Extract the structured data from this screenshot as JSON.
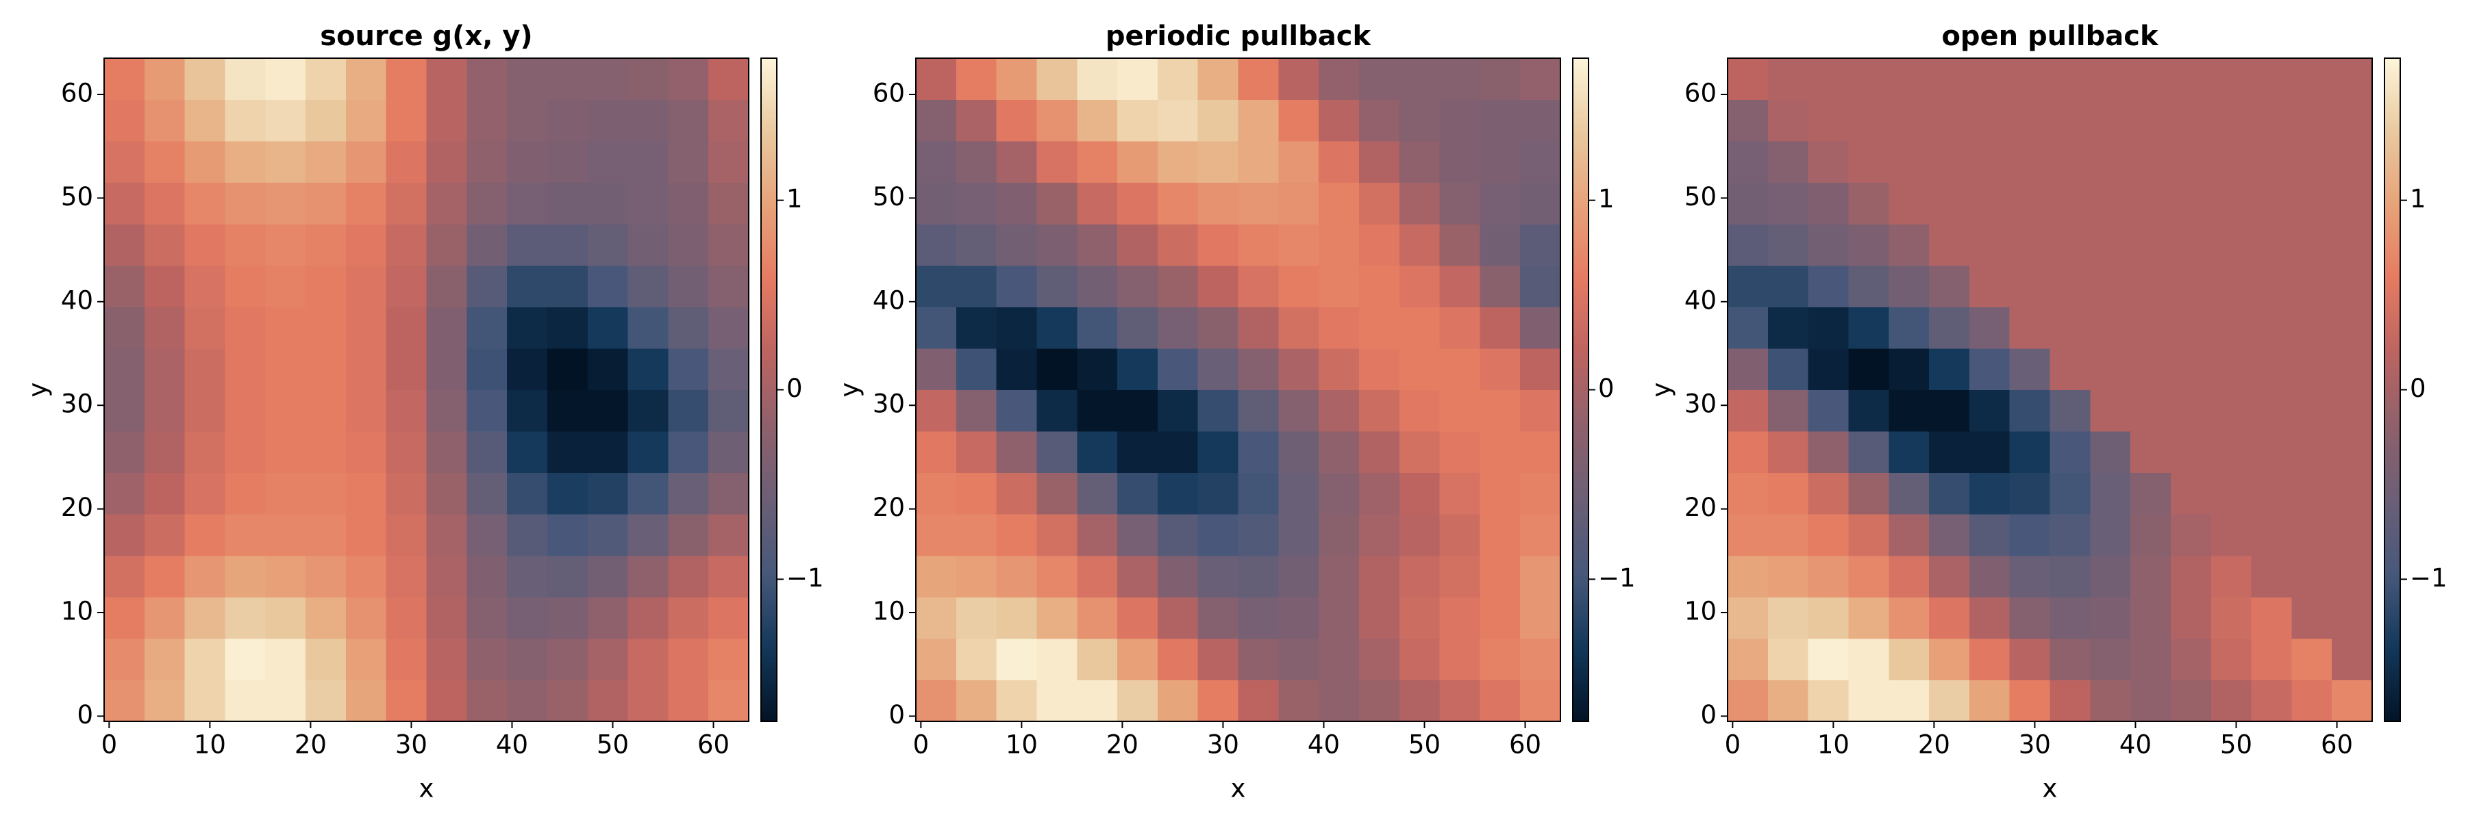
{
  "chart_data": [
    {
      "type": "heatmap",
      "title": "source g(x, y)",
      "xlabel": "x",
      "ylabel": "y",
      "xlim": [
        -0.5,
        63.5
      ],
      "ylim": [
        -0.5,
        63.5
      ],
      "xticks": [
        0,
        10,
        20,
        30,
        40,
        50,
        60
      ],
      "yticks": [
        0,
        10,
        20,
        30,
        40,
        50,
        60
      ],
      "grid": false,
      "xbins": [
        -0.5,
        3.5,
        7.5,
        11.5,
        15.5,
        19.5,
        23.5,
        27.5,
        31.5,
        35.5,
        39.5,
        43.5,
        47.5,
        51.5,
        55.5,
        59.5,
        63.5
      ],
      "ybins": [
        -0.5,
        3.5,
        7.5,
        11.5,
        15.5,
        19.5,
        23.5,
        27.5,
        31.5,
        35.5,
        39.5,
        43.5,
        47.5,
        51.5,
        55.5,
        59.5,
        63.5
      ],
      "clim": [
        -1.75,
        1.75
      ],
      "cticks": [
        {
          "value": -1,
          "label": "−1"
        },
        0,
        1
      ],
      "colorscale": [
        "#031326",
        "#13385a",
        "#47587a",
        "#6b5f76",
        "#8e616c",
        "#bc6461",
        "#e57b62",
        "#e7a279",
        "#e9c99f",
        "#fdf5da"
      ],
      "z": [
        [
          0.8,
          1.1,
          1.45,
          1.65,
          1.65,
          1.4,
          1.0,
          0.6,
          0.2,
          -0.1,
          -0.2,
          -0.1,
          0.1,
          0.3,
          0.5,
          0.7
        ],
        [
          0.75,
          1.05,
          1.45,
          1.7,
          1.65,
          1.35,
          0.95,
          0.55,
          0.15,
          -0.2,
          -0.3,
          -0.2,
          0.0,
          0.3,
          0.5,
          0.65
        ],
        [
          0.6,
          0.85,
          1.2,
          1.4,
          1.35,
          1.1,
          0.8,
          0.5,
          0.1,
          -0.3,
          -0.45,
          -0.4,
          -0.2,
          0.1,
          0.35,
          0.5
        ],
        [
          0.4,
          0.6,
          0.85,
          1.0,
          0.95,
          0.85,
          0.7,
          0.45,
          0.05,
          -0.35,
          -0.6,
          -0.65,
          -0.5,
          -0.2,
          0.1,
          0.3
        ],
        [
          0.15,
          0.35,
          0.6,
          0.7,
          0.7,
          0.7,
          0.6,
          0.4,
          0.0,
          -0.45,
          -0.8,
          -0.95,
          -0.85,
          -0.6,
          -0.25,
          0.0
        ],
        [
          -0.05,
          0.2,
          0.45,
          0.6,
          0.65,
          0.65,
          0.6,
          0.35,
          -0.1,
          -0.65,
          -1.1,
          -1.3,
          -1.25,
          -1.0,
          -0.6,
          -0.3
        ],
        [
          -0.2,
          0.1,
          0.4,
          0.55,
          0.6,
          0.6,
          0.55,
          0.3,
          -0.2,
          -0.8,
          -1.35,
          -1.6,
          -1.6,
          -1.35,
          -0.95,
          -0.55
        ],
        [
          -0.3,
          0.05,
          0.35,
          0.55,
          0.6,
          0.6,
          0.5,
          0.25,
          -0.3,
          -0.95,
          -1.5,
          -1.72,
          -1.72,
          -1.5,
          -1.1,
          -0.7
        ],
        [
          -0.3,
          0.05,
          0.35,
          0.55,
          0.6,
          0.6,
          0.5,
          0.2,
          -0.35,
          -1.05,
          -1.6,
          -1.75,
          -1.65,
          -1.35,
          -0.95,
          -0.6
        ],
        [
          -0.25,
          0.1,
          0.4,
          0.55,
          0.6,
          0.6,
          0.5,
          0.2,
          -0.35,
          -1.0,
          -1.5,
          -1.55,
          -1.35,
          -1.0,
          -0.7,
          -0.45
        ],
        [
          -0.1,
          0.2,
          0.45,
          0.6,
          0.65,
          0.6,
          0.5,
          0.25,
          -0.25,
          -0.8,
          -1.15,
          -1.15,
          -0.95,
          -0.7,
          -0.5,
          -0.3
        ],
        [
          0.1,
          0.35,
          0.55,
          0.65,
          0.7,
          0.65,
          0.55,
          0.3,
          -0.1,
          -0.5,
          -0.75,
          -0.75,
          -0.65,
          -0.5,
          -0.4,
          -0.2
        ],
        [
          0.3,
          0.5,
          0.7,
          0.8,
          0.85,
          0.8,
          0.65,
          0.4,
          0.0,
          -0.3,
          -0.45,
          -0.5,
          -0.5,
          -0.45,
          -0.35,
          -0.1
        ],
        [
          0.45,
          0.65,
          0.9,
          1.1,
          1.15,
          1.05,
          0.85,
          0.5,
          0.1,
          -0.2,
          -0.35,
          -0.4,
          -0.45,
          -0.45,
          -0.3,
          0.0
        ],
        [
          0.55,
          0.8,
          1.15,
          1.45,
          1.5,
          1.35,
          1.05,
          0.6,
          0.15,
          -0.15,
          -0.3,
          -0.35,
          -0.4,
          -0.4,
          -0.3,
          0.05
        ],
        [
          0.6,
          0.9,
          1.3,
          1.6,
          1.65,
          1.45,
          1.1,
          0.6,
          0.15,
          -0.15,
          -0.3,
          -0.3,
          -0.3,
          -0.25,
          -0.15,
          0.2
        ]
      ]
    },
    {
      "type": "heatmap",
      "title": "periodic pullback",
      "xlabel": "x",
      "ylabel": "y",
      "xlim": [
        -0.5,
        63.5
      ],
      "ylim": [
        -0.5,
        63.5
      ],
      "xticks": [
        0,
        10,
        20,
        30,
        40,
        50,
        60
      ],
      "yticks": [
        0,
        10,
        20,
        30,
        40,
        50,
        60
      ],
      "grid": false,
      "xbins": [
        -0.5,
        3.5,
        7.5,
        11.5,
        15.5,
        19.5,
        23.5,
        27.5,
        31.5,
        35.5,
        39.5,
        43.5,
        47.5,
        51.5,
        55.5,
        59.5,
        63.5
      ],
      "ybins": [
        -0.5,
        3.5,
        7.5,
        11.5,
        15.5,
        19.5,
        23.5,
        27.5,
        31.5,
        35.5,
        39.5,
        43.5,
        47.5,
        51.5,
        55.5,
        59.5,
        63.5
      ],
      "clim": [
        -1.75,
        1.75
      ],
      "cticks": [
        {
          "value": -1,
          "label": "−1"
        },
        0,
        1
      ],
      "colorscale": [
        "#031326",
        "#13385a",
        "#47587a",
        "#6b5f76",
        "#8e616c",
        "#bc6461",
        "#e57b62",
        "#e7a279",
        "#e9c99f",
        "#fdf5da"
      ],
      "z": [
        [
          0.8,
          1.1,
          1.45,
          1.65,
          1.65,
          1.4,
          1.0,
          0.6,
          0.2,
          -0.1,
          -0.2,
          -0.1,
          0.1,
          0.3,
          0.5,
          0.7
        ],
        [
          1.05,
          1.45,
          1.7,
          1.65,
          1.35,
          0.95,
          0.55,
          0.15,
          -0.2,
          -0.3,
          -0.2,
          0.0,
          0.3,
          0.5,
          0.65,
          0.75
        ],
        [
          1.2,
          1.4,
          1.35,
          1.1,
          0.8,
          0.5,
          0.1,
          -0.3,
          -0.45,
          -0.4,
          -0.2,
          0.1,
          0.35,
          0.5,
          0.6,
          0.85
        ],
        [
          1.0,
          0.95,
          0.85,
          0.7,
          0.45,
          0.05,
          -0.35,
          -0.6,
          -0.65,
          -0.5,
          -0.2,
          0.1,
          0.3,
          0.4,
          0.6,
          0.85
        ],
        [
          0.7,
          0.7,
          0.6,
          0.4,
          0.0,
          -0.45,
          -0.8,
          -0.95,
          -0.85,
          -0.6,
          -0.25,
          0.0,
          0.15,
          0.35,
          0.6,
          0.7
        ],
        [
          0.65,
          0.6,
          0.35,
          -0.1,
          -0.65,
          -1.1,
          -1.3,
          -1.25,
          -1.0,
          -0.6,
          -0.3,
          -0.05,
          0.2,
          0.45,
          0.6,
          0.65
        ],
        [
          0.55,
          0.3,
          -0.2,
          -0.8,
          -1.35,
          -1.6,
          -1.6,
          -1.35,
          -0.95,
          -0.55,
          -0.2,
          0.1,
          0.4,
          0.55,
          0.6,
          0.6
        ],
        [
          0.25,
          -0.3,
          -0.95,
          -1.5,
          -1.72,
          -1.72,
          -1.5,
          -1.1,
          -0.7,
          -0.3,
          0.05,
          0.35,
          0.55,
          0.6,
          0.6,
          0.5
        ],
        [
          -0.35,
          -1.05,
          -1.6,
          -1.75,
          -1.65,
          -1.35,
          -0.95,
          -0.6,
          -0.3,
          0.05,
          0.35,
          0.55,
          0.6,
          0.6,
          0.5,
          0.2
        ],
        [
          -1.0,
          -1.5,
          -1.55,
          -1.35,
          -1.0,
          -0.7,
          -0.45,
          -0.25,
          0.1,
          0.4,
          0.55,
          0.6,
          0.6,
          0.5,
          0.2,
          -0.35
        ],
        [
          -1.15,
          -1.15,
          -0.95,
          -0.7,
          -0.5,
          -0.3,
          -0.1,
          0.2,
          0.45,
          0.6,
          0.65,
          0.6,
          0.5,
          0.25,
          -0.25,
          -0.8
        ],
        [
          -0.75,
          -0.65,
          -0.5,
          -0.4,
          -0.2,
          0.1,
          0.35,
          0.55,
          0.65,
          0.7,
          0.65,
          0.55,
          0.3,
          -0.1,
          -0.5,
          -0.75
        ],
        [
          -0.5,
          -0.45,
          -0.35,
          -0.1,
          0.3,
          0.5,
          0.7,
          0.8,
          0.85,
          0.8,
          0.65,
          0.4,
          0.0,
          -0.3,
          -0.45,
          -0.5
        ],
        [
          -0.45,
          -0.3,
          0.0,
          0.45,
          0.65,
          0.9,
          1.1,
          1.15,
          1.05,
          0.85,
          0.5,
          0.1,
          -0.2,
          -0.35,
          -0.4,
          -0.45
        ],
        [
          -0.3,
          0.05,
          0.55,
          0.8,
          1.15,
          1.45,
          1.5,
          1.35,
          1.05,
          0.6,
          0.15,
          -0.15,
          -0.3,
          -0.35,
          -0.4,
          -0.4
        ],
        [
          0.2,
          0.6,
          0.9,
          1.3,
          1.6,
          1.65,
          1.45,
          1.1,
          0.6,
          0.15,
          -0.15,
          -0.3,
          -0.3,
          -0.3,
          -0.25,
          -0.15
        ]
      ]
    },
    {
      "type": "heatmap",
      "title": "open pullback",
      "xlabel": "x",
      "ylabel": "y",
      "xlim": [
        -0.5,
        63.5
      ],
      "ylim": [
        -0.5,
        63.5
      ],
      "xticks": [
        0,
        10,
        20,
        30,
        40,
        50,
        60
      ],
      "yticks": [
        0,
        10,
        20,
        30,
        40,
        50,
        60
      ],
      "grid": false,
      "xbins": [
        -0.5,
        3.5,
        7.5,
        11.5,
        15.5,
        19.5,
        23.5,
        27.5,
        31.5,
        35.5,
        39.5,
        43.5,
        47.5,
        51.5,
        55.5,
        59.5,
        63.5
      ],
      "ybins": [
        -0.5,
        3.5,
        7.5,
        11.5,
        15.5,
        19.5,
        23.5,
        27.5,
        31.5,
        35.5,
        39.5,
        43.5,
        47.5,
        51.5,
        55.5,
        59.5,
        63.5
      ],
      "clim": [
        -1.75,
        1.75
      ],
      "cticks": [
        {
          "value": -1,
          "label": "−1"
        },
        0,
        1
      ],
      "colorscale": [
        "#031326",
        "#13385a",
        "#47587a",
        "#6b5f76",
        "#8e616c",
        "#bc6461",
        "#e57b62",
        "#e7a279",
        "#e9c99f",
        "#fdf5da"
      ],
      "z": [
        [
          0.8,
          1.1,
          1.45,
          1.65,
          1.65,
          1.4,
          1.0,
          0.6,
          0.2,
          -0.1,
          -0.2,
          -0.1,
          0.1,
          0.3,
          0.5,
          0.7
        ],
        [
          1.05,
          1.45,
          1.7,
          1.65,
          1.35,
          0.95,
          0.55,
          0.15,
          -0.2,
          -0.3,
          -0.2,
          0.0,
          0.3,
          0.5,
          0.65,
          0.1
        ],
        [
          1.2,
          1.4,
          1.35,
          1.1,
          0.8,
          0.5,
          0.1,
          -0.3,
          -0.45,
          -0.4,
          -0.2,
          0.1,
          0.35,
          0.5,
          0.1,
          0.1
        ],
        [
          1.0,
          0.95,
          0.85,
          0.7,
          0.45,
          0.05,
          -0.35,
          -0.6,
          -0.65,
          -0.5,
          -0.2,
          0.1,
          0.3,
          0.1,
          0.1,
          0.1
        ],
        [
          0.7,
          0.7,
          0.6,
          0.4,
          0.0,
          -0.45,
          -0.8,
          -0.95,
          -0.85,
          -0.6,
          -0.25,
          0.0,
          0.1,
          0.1,
          0.1,
          0.1
        ],
        [
          0.65,
          0.6,
          0.35,
          -0.1,
          -0.65,
          -1.1,
          -1.3,
          -1.25,
          -1.0,
          -0.6,
          -0.3,
          0.1,
          0.1,
          0.1,
          0.1,
          0.1
        ],
        [
          0.55,
          0.3,
          -0.2,
          -0.8,
          -1.35,
          -1.6,
          -1.6,
          -1.35,
          -0.95,
          -0.55,
          0.1,
          0.1,
          0.1,
          0.1,
          0.1,
          0.1
        ],
        [
          0.25,
          -0.3,
          -0.95,
          -1.5,
          -1.72,
          -1.72,
          -1.5,
          -1.1,
          -0.7,
          0.1,
          0.1,
          0.1,
          0.1,
          0.1,
          0.1,
          0.1
        ],
        [
          -0.35,
          -1.05,
          -1.6,
          -1.75,
          -1.65,
          -1.35,
          -0.95,
          -0.6,
          0.1,
          0.1,
          0.1,
          0.1,
          0.1,
          0.1,
          0.1,
          0.1
        ],
        [
          -1.0,
          -1.5,
          -1.55,
          -1.35,
          -1.0,
          -0.7,
          -0.45,
          0.1,
          0.1,
          0.1,
          0.1,
          0.1,
          0.1,
          0.1,
          0.1,
          0.1
        ],
        [
          -1.15,
          -1.15,
          -0.95,
          -0.7,
          -0.5,
          -0.3,
          0.1,
          0.1,
          0.1,
          0.1,
          0.1,
          0.1,
          0.1,
          0.1,
          0.1,
          0.1
        ],
        [
          -0.75,
          -0.65,
          -0.5,
          -0.4,
          -0.2,
          0.1,
          0.1,
          0.1,
          0.1,
          0.1,
          0.1,
          0.1,
          0.1,
          0.1,
          0.1,
          0.1
        ],
        [
          -0.5,
          -0.45,
          -0.35,
          -0.1,
          0.1,
          0.1,
          0.1,
          0.1,
          0.1,
          0.1,
          0.1,
          0.1,
          0.1,
          0.1,
          0.1,
          0.1
        ],
        [
          -0.45,
          -0.3,
          0.0,
          0.1,
          0.1,
          0.1,
          0.1,
          0.1,
          0.1,
          0.1,
          0.1,
          0.1,
          0.1,
          0.1,
          0.1,
          0.1
        ],
        [
          -0.3,
          0.05,
          0.1,
          0.1,
          0.1,
          0.1,
          0.1,
          0.1,
          0.1,
          0.1,
          0.1,
          0.1,
          0.1,
          0.1,
          0.1,
          0.1
        ],
        [
          0.2,
          0.1,
          0.1,
          0.1,
          0.1,
          0.1,
          0.1,
          0.1,
          0.1,
          0.1,
          0.1,
          0.1,
          0.1,
          0.1,
          0.1,
          0.1
        ]
      ]
    }
  ]
}
